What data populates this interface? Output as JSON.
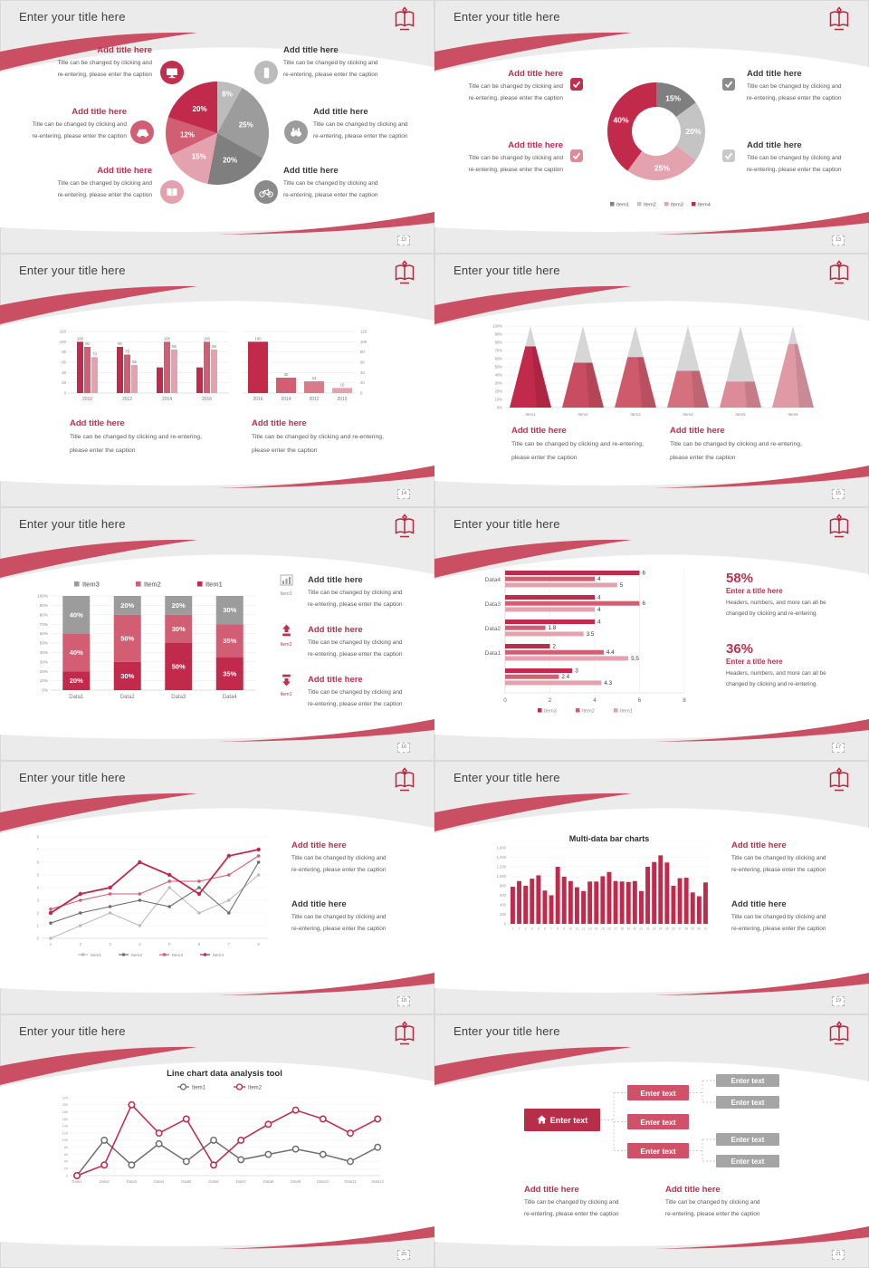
{
  "common": {
    "slide_title": "Enter your title here",
    "add_title": "Add title here",
    "caption_block": "Title can be changed by clicking and\nre-entering, please enter the caption",
    "caption_wide": "Title can be changed by clicking and re-entering,\nplease enter the caption",
    "caption_stat": "Headers, numbers, and more can all be\nchanged by clicking and re-entering.",
    "enter_text": "Enter text"
  },
  "colors": {
    "accent": "#c0304e",
    "red_dark": "#c12a4b",
    "rose": "#d15e72",
    "pink": "#e3a2ae",
    "gray_dark": "#7f7f7f",
    "gray_mid": "#9c9c9c",
    "gray_light": "#bcbcbc",
    "ribbon": "#cb4f63",
    "org_root": "#b72e49",
    "org_mid": "#cf5268",
    "org_leaf": "#a5a5a5"
  },
  "slides": [
    {
      "page": "12"
    },
    {
      "page": "13"
    },
    {
      "page": "14"
    },
    {
      "page": "15"
    },
    {
      "page": "16",
      "icon_labels": [
        "Item3",
        "Item2",
        "Item1"
      ]
    },
    {
      "page": "17",
      "stats": [
        {
          "value": "58%",
          "title": "Enter a title here"
        },
        {
          "value": "36%",
          "title": "Enter a title here"
        }
      ]
    },
    {
      "page": "18"
    },
    {
      "page": "19"
    },
    {
      "page": "20"
    },
    {
      "page": "21"
    }
  ],
  "chart_data": [
    {
      "id": "pie",
      "slide_page": "12",
      "type": "pie",
      "values": [
        8,
        25,
        20,
        15,
        12,
        20
      ],
      "labels": [
        "8%",
        "25%",
        "20%",
        "15%",
        "12%",
        "20%"
      ],
      "colors": [
        "#bcbcbc",
        "#9c9c9c",
        "#7f7f7f",
        "#e3a2ae",
        "#d15e72",
        "#c12a4b"
      ],
      "start_angle": "top",
      "direction": "clockwise",
      "label_color": "#ffffff"
    },
    {
      "id": "donut",
      "slide_page": "13",
      "type": "pie",
      "donut": true,
      "values": [
        15,
        20,
        25,
        40
      ],
      "labels": [
        "15%",
        "20%",
        "25%",
        "40%"
      ],
      "colors": [
        "#7f7f7f",
        "#c4c4c4",
        "#e3a2ae",
        "#c12a4b"
      ],
      "legend": [
        "Item1",
        "Item2",
        "Item3",
        "Item4"
      ],
      "legend_colors": [
        "#7f7f7f",
        "#c4c4c4",
        "#e3a2ae",
        "#c12a4b"
      ],
      "legend_position": "bottom"
    },
    {
      "id": "gbar",
      "slide_page": "14",
      "type": "bar",
      "grouped": true,
      "categories": [
        "2010",
        "2012",
        "2014",
        "2016"
      ],
      "series": [
        {
          "name": "series1",
          "color": "#c12a4b",
          "values": [
            100,
            90,
            50,
            50
          ],
          "labels": [
            "100",
            "90",
            "",
            ""
          ]
        },
        {
          "name": "series2",
          "color": "#d15e72",
          "values": [
            90,
            75,
            100,
            100
          ],
          "labels": [
            "90",
            "75",
            "100",
            "100"
          ]
        },
        {
          "name": "series3",
          "color": "#e3a2ae",
          "values": [
            70,
            55,
            85,
            85
          ],
          "labels": [
            "70",
            "55",
            "85",
            "85"
          ]
        }
      ],
      "ylim": [
        0,
        120
      ],
      "ytick_step": 20,
      "grid": true,
      "yaxis_side": "left"
    },
    {
      "id": "dbar",
      "slide_page": "14",
      "type": "bar",
      "categories": [
        "2016",
        "2014",
        "2012",
        "2010"
      ],
      "values": [
        100,
        30,
        23,
        10
      ],
      "labels": [
        "100",
        "30",
        "23",
        "10"
      ],
      "colors": [
        "#c12a4b",
        "#d15e72",
        "#d97b8b",
        "#e3a2ae"
      ],
      "ylim": [
        0,
        120
      ],
      "ytick_step": 20,
      "grid": true,
      "yaxis_side": "right"
    },
    {
      "id": "pyramid",
      "slide_page": "15",
      "type": "pyramid",
      "categories": [
        "Item1",
        "Item2",
        "Item3",
        "Item4",
        "Item5",
        "Item6"
      ],
      "values_pct": [
        75,
        55,
        62,
        45,
        32,
        78
      ],
      "fill_colors": [
        "#c12a4b",
        "#c94d61",
        "#ce5a6c",
        "#d5707f",
        "#dd8b98",
        "#e09aa6"
      ],
      "cap_color": "#d6d6d6",
      "ylim": [
        0,
        100
      ],
      "ytick_step": 10,
      "ytick_suffix": "%"
    },
    {
      "id": "stacked",
      "slide_page": "16",
      "type": "bar",
      "stacked": true,
      "percent": true,
      "categories": [
        "Data1",
        "Data2",
        "Data3",
        "Data4"
      ],
      "series": [
        {
          "name": "Item1",
          "color": "#c12a4b",
          "values": [
            20,
            30,
            50,
            35
          ]
        },
        {
          "name": "Item2",
          "color": "#d15e72",
          "values": [
            40,
            50,
            30,
            35
          ]
        },
        {
          "name": "Item3",
          "color": "#9c9c9c",
          "values": [
            40,
            20,
            20,
            30
          ]
        }
      ],
      "legend": [
        "Item3",
        "Item2",
        "Item1"
      ],
      "legend_colors": [
        "#9c9c9c",
        "#d15e72",
        "#c12a4b"
      ],
      "legend_position": "top",
      "ylim": [
        0,
        100
      ],
      "ytick_step": 10
    },
    {
      "id": "hbar",
      "slide_page": "17",
      "type": "bar",
      "horizontal": true,
      "categories": [
        "Data4",
        "Data3",
        "Data2",
        "Data1",
        ""
      ],
      "series": [
        {
          "name": "Item3",
          "color": "#c12a4b",
          "values": [
            6,
            4,
            4,
            2,
            3
          ]
        },
        {
          "name": "Item2",
          "color": "#d15e72",
          "values": [
            4,
            6,
            1.8,
            4.4,
            2.4
          ]
        },
        {
          "name": "Item1",
          "color": "#e3a2ae",
          "values": [
            5,
            4,
            3.5,
            5.5,
            4.3
          ]
        }
      ],
      "xlim": [
        0,
        8
      ],
      "xticks": [
        0,
        2,
        4,
        6,
        8
      ],
      "legend": [
        "Item3",
        "Item2",
        "Item1"
      ],
      "legend_position": "bottom",
      "value_labels": true
    },
    {
      "id": "line8",
      "slide_page": "18",
      "type": "line",
      "x": [
        1,
        2,
        3,
        4,
        5,
        6,
        7,
        8
      ],
      "series": [
        {
          "name": "Item1",
          "color": "#bcbcbc",
          "values": [
            0,
            1,
            2,
            1,
            4,
            2,
            3,
            5
          ]
        },
        {
          "name": "Item2",
          "color": "#6e6e6e",
          "values": [
            1.2,
            2,
            2.5,
            3,
            2.5,
            4,
            2,
            6
          ]
        },
        {
          "name": "Item3",
          "color": "#d15e72",
          "values": [
            2.3,
            3,
            3.5,
            3.5,
            4.5,
            4.5,
            5,
            6.5
          ]
        },
        {
          "name": "Item4",
          "color": "#c0274a",
          "values": [
            2,
            3.5,
            4,
            6,
            5,
            3.5,
            6.5,
            7
          ]
        }
      ],
      "ylim": [
        0,
        8
      ],
      "ytick_step": 1,
      "grid": true,
      "markers": true,
      "legend_position": "bottom"
    },
    {
      "id": "bigbar",
      "slide_page": "19",
      "type": "bar",
      "title": "Multi-data bar charts",
      "categories": [
        "1",
        "2",
        "3",
        "4",
        "5",
        "6",
        "7",
        "8",
        "9",
        "10",
        "11",
        "12",
        "13",
        "14",
        "15",
        "16",
        "17",
        "18",
        "19",
        "20",
        "21",
        "22",
        "23",
        "24",
        "25",
        "26",
        "27",
        "28",
        "29",
        "30",
        "31"
      ],
      "values": [
        780,
        900,
        800,
        950,
        1020,
        700,
        600,
        1200,
        990,
        900,
        770,
        690,
        890,
        890,
        1000,
        1090,
        900,
        890,
        880,
        900,
        690,
        1200,
        1300,
        1440,
        1290,
        800,
        960,
        970,
        660,
        580,
        870
      ],
      "color": "#c12a4b",
      "ylim": [
        0,
        1600
      ],
      "ytick_step": 200,
      "grid": true
    },
    {
      "id": "line12",
      "slide_page": "20",
      "type": "line",
      "title": "Line chart data analysis tool",
      "categories": [
        "Data1",
        "Data2",
        "Data3",
        "Data4",
        "Data5",
        "Data6",
        "Data7",
        "Data8",
        "Data9",
        "Data10",
        "Data11",
        "Data12"
      ],
      "series": [
        {
          "name": "Item1",
          "color": "#6e6e6e",
          "values": [
            0,
            100,
            30,
            90,
            40,
            100,
            45,
            60,
            75,
            60,
            40,
            80
          ]
        },
        {
          "name": "Item2",
          "color": "#c0274a",
          "values": [
            0,
            30,
            200,
            120,
            160,
            30,
            100,
            145,
            185,
            160,
            120,
            160
          ]
        }
      ],
      "ylim": [
        0,
        220
      ],
      "ytick_step": 20,
      "grid": true,
      "markers": "open-circle",
      "legend_position": "top"
    }
  ]
}
